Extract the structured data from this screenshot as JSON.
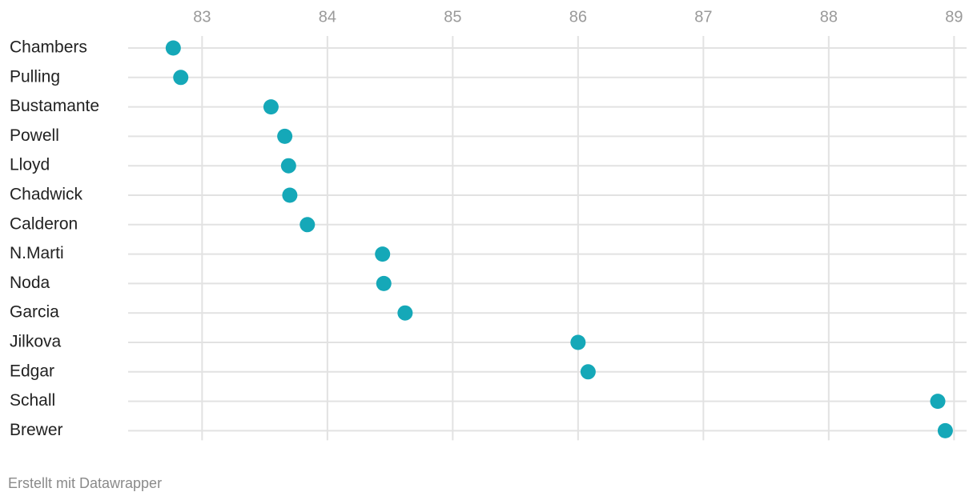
{
  "chart_data": {
    "type": "dot",
    "orientation": "horizontal",
    "categories": [
      "Chambers",
      "Pulling",
      "Bustamante",
      "Powell",
      "Lloyd",
      "Chadwick",
      "Calderon",
      "N.Marti",
      "Noda",
      "Garcia",
      "Jilkova",
      "Edgar",
      "Schall",
      "Brewer"
    ],
    "values": [
      82.77,
      82.83,
      83.55,
      83.66,
      83.69,
      83.7,
      83.84,
      84.44,
      84.45,
      84.62,
      86.0,
      86.08,
      88.87,
      88.93
    ],
    "color": "#15a8b8",
    "xlim": [
      82.41,
      89.1
    ],
    "xticks": [
      83,
      84,
      85,
      86,
      87,
      88,
      89
    ],
    "grid": true,
    "footer": "Erstellt mit Datawrapper"
  }
}
